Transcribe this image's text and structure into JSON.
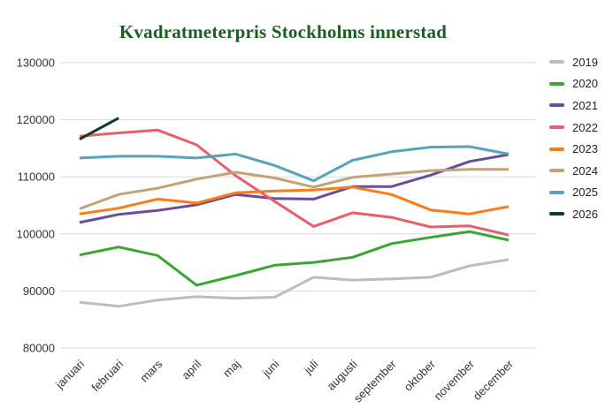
{
  "title": "Kvadratmeterpris Stockholms innerstad",
  "title_color": "#1b5e20",
  "chart_data": {
    "type": "line",
    "title": "Kvadratmeterpris Stockholms innerstad",
    "xlabel": "",
    "ylabel": "",
    "x_labels": [
      "januari",
      "februari",
      "mars",
      "april",
      "maj",
      "juni",
      "juli",
      "augusti",
      "september",
      "oktober",
      "november",
      "december"
    ],
    "ylim": [
      80000,
      130000
    ],
    "yticks": [
      80000,
      90000,
      100000,
      110000,
      120000,
      130000
    ],
    "grid": true,
    "legend_position": "right",
    "series": [
      {
        "name": "2019",
        "color": "#bdbdbd",
        "values": [
          88000,
          87300,
          88400,
          89000,
          88700,
          88900,
          92400,
          91900,
          92100,
          92400,
          94400,
          95500
        ]
      },
      {
        "name": "2020",
        "color": "#3aa531",
        "values": [
          96300,
          97700,
          96200,
          91000,
          92700,
          94500,
          95000,
          95900,
          98300,
          99400,
          100400,
          98900
        ]
      },
      {
        "name": "2021",
        "color": "#6a4c9c",
        "values": [
          102000,
          103400,
          104100,
          105100,
          106900,
          106200,
          106100,
          108300,
          108300,
          110300,
          112700,
          113900
        ]
      },
      {
        "name": "2022",
        "color": "#ea5e69",
        "values": [
          117100,
          117700,
          118200,
          115600,
          110200,
          105700,
          101300,
          103700,
          102900,
          101200,
          101400,
          99800
        ]
      },
      {
        "name": "2023",
        "color": "#fd7b16",
        "values": [
          103500,
          104500,
          106100,
          105400,
          107200,
          107500,
          107700,
          108200,
          106900,
          104200,
          103500,
          104800
        ]
      },
      {
        "name": "2024",
        "color": "#c2a278",
        "values": [
          104400,
          106900,
          108000,
          109600,
          110800,
          109800,
          108200,
          109900,
          110500,
          111100,
          111300,
          111300
        ]
      },
      {
        "name": "2025",
        "color": "#55a3bd",
        "values": [
          113300,
          113600,
          113600,
          113300,
          114000,
          112000,
          109300,
          112900,
          114400,
          115200,
          115300,
          114000
        ]
      },
      {
        "name": "2026",
        "color": "#0e3d1d",
        "values": [
          116600,
          120300,
          null,
          null,
          null,
          null,
          null,
          null,
          null,
          null,
          null,
          null
        ]
      }
    ]
  }
}
